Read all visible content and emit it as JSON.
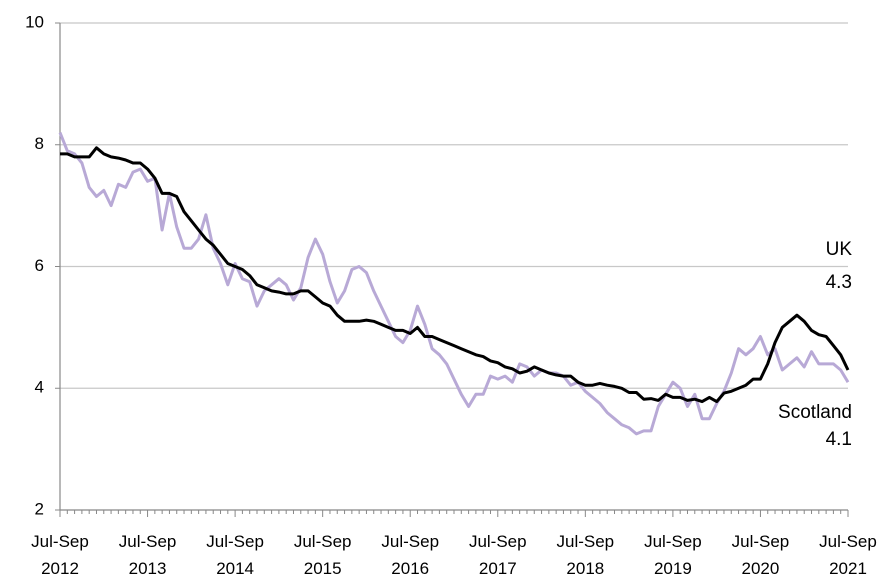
{
  "chart_data": {
    "type": "line",
    "categories": [
      "Jul-Sep 2012",
      null,
      null,
      null,
      null,
      null,
      null,
      null,
      null,
      null,
      null,
      null,
      "Jul-Sep 2013",
      null,
      null,
      null,
      null,
      null,
      null,
      null,
      null,
      null,
      null,
      null,
      "Jul-Sep 2014",
      null,
      null,
      null,
      null,
      null,
      null,
      null,
      null,
      null,
      null,
      null,
      "Jul-Sep 2015",
      null,
      null,
      null,
      null,
      null,
      null,
      null,
      null,
      null,
      null,
      null,
      "Jul-Sep 2016",
      null,
      null,
      null,
      null,
      null,
      null,
      null,
      null,
      null,
      null,
      null,
      "Jul-Sep 2017",
      null,
      null,
      null,
      null,
      null,
      null,
      null,
      null,
      null,
      null,
      null,
      "Jul-Sep 2018",
      null,
      null,
      null,
      null,
      null,
      null,
      null,
      null,
      null,
      null,
      null,
      "Jul-Sep 2019",
      null,
      null,
      null,
      null,
      null,
      null,
      null,
      null,
      null,
      null,
      null,
      "Jul-Sep 2020",
      null,
      null,
      null,
      null,
      null,
      null,
      null,
      null,
      null,
      null,
      null,
      "Jul-Sep 2021"
    ],
    "series": [
      {
        "name": "UK",
        "color": "#000000",
        "values": [
          7.85,
          7.85,
          7.8,
          7.8,
          7.8,
          7.95,
          7.85,
          7.8,
          7.78,
          7.75,
          7.7,
          7.7,
          7.6,
          7.45,
          7.2,
          7.2,
          7.15,
          6.9,
          6.75,
          6.6,
          6.45,
          6.35,
          6.2,
          6.05,
          6.0,
          5.95,
          5.85,
          5.7,
          5.65,
          5.6,
          5.58,
          5.55,
          5.55,
          5.6,
          5.6,
          5.5,
          5.4,
          5.35,
          5.2,
          5.1,
          5.1,
          5.1,
          5.12,
          5.1,
          5.05,
          5.0,
          4.95,
          4.95,
          4.9,
          5.0,
          4.85,
          4.85,
          4.8,
          4.75,
          4.7,
          4.65,
          4.6,
          4.55,
          4.52,
          4.45,
          4.42,
          4.35,
          4.32,
          4.25,
          4.28,
          4.35,
          4.3,
          4.25,
          4.22,
          4.2,
          4.2,
          4.1,
          4.05,
          4.05,
          4.08,
          4.05,
          4.03,
          4.0,
          3.93,
          3.93,
          3.82,
          3.83,
          3.8,
          3.9,
          3.85,
          3.85,
          3.8,
          3.82,
          3.78,
          3.85,
          3.78,
          3.92,
          3.95,
          4.0,
          4.05,
          4.15,
          4.15,
          4.4,
          4.75,
          5.0,
          5.1,
          5.2,
          5.1,
          4.95,
          4.88,
          4.85,
          4.7,
          4.55,
          4.3
        ]
      },
      {
        "name": "Scotland",
        "color": "#b8a9d6",
        "values": [
          8.2,
          7.9,
          7.85,
          7.7,
          7.3,
          7.15,
          7.25,
          7.0,
          7.35,
          7.3,
          7.55,
          7.6,
          7.4,
          7.45,
          6.6,
          7.2,
          6.65,
          6.3,
          6.3,
          6.45,
          6.85,
          6.3,
          6.05,
          5.7,
          6.05,
          5.8,
          5.75,
          5.35,
          5.6,
          5.7,
          5.8,
          5.7,
          5.45,
          5.65,
          6.15,
          6.45,
          6.2,
          5.75,
          5.4,
          5.6,
          5.95,
          6.0,
          5.9,
          5.6,
          5.35,
          5.1,
          4.85,
          4.75,
          4.95,
          5.35,
          5.05,
          4.65,
          4.55,
          4.4,
          4.15,
          3.9,
          3.7,
          3.9,
          3.9,
          4.2,
          4.15,
          4.2,
          4.1,
          4.4,
          4.35,
          4.2,
          4.3,
          4.25,
          4.25,
          4.2,
          4.05,
          4.1,
          3.95,
          3.85,
          3.75,
          3.6,
          3.5,
          3.4,
          3.35,
          3.25,
          3.3,
          3.3,
          3.7,
          3.9,
          4.1,
          4.0,
          3.7,
          3.9,
          3.5,
          3.5,
          3.75,
          3.95,
          4.25,
          4.65,
          4.55,
          4.65,
          4.85,
          4.55,
          4.65,
          4.3,
          4.4,
          4.5,
          4.35,
          4.6,
          4.4,
          4.4,
          4.4,
          4.3,
          4.1
        ]
      }
    ],
    "ylim": [
      2,
      10
    ],
    "yticks": [
      2,
      4,
      6,
      8,
      10
    ],
    "grid": true
  }
}
